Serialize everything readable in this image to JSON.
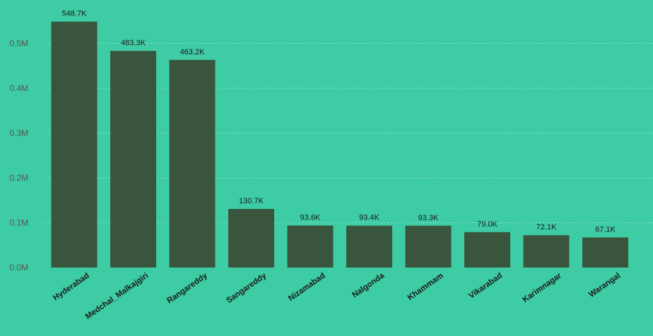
{
  "chart_data": {
    "type": "bar",
    "title": "",
    "xlabel": "",
    "ylabel": "",
    "categories": [
      "Hyderabad",
      "Medchal_Malkajgiri",
      "Rangareddy",
      "Sangareddy",
      "Nizamabad",
      "Nalgonda",
      "Khammam",
      "Vikarabad",
      "Karimnagar",
      "Warangal"
    ],
    "values": [
      548700,
      483300,
      463200,
      130700,
      93600,
      93400,
      93300,
      79000,
      72100,
      67100
    ],
    "data_labels": [
      "548.7K",
      "483.3K",
      "463.2K",
      "130.7K",
      "93.6K",
      "93.4K",
      "93.3K",
      "79.0K",
      "72.1K",
      "67.1K"
    ],
    "yticks": [
      0,
      100000,
      200000,
      300000,
      400000,
      500000
    ],
    "ytick_labels": [
      "0.0M",
      "0.1M",
      "0.2M",
      "0.3M",
      "0.4M",
      "0.5M"
    ],
    "ylim": [
      0,
      548700
    ],
    "grid": true,
    "legend": "none",
    "colors": {
      "bar": "#3a553e",
      "background": "#3ecca4",
      "grid": "#8fe3c9"
    }
  }
}
